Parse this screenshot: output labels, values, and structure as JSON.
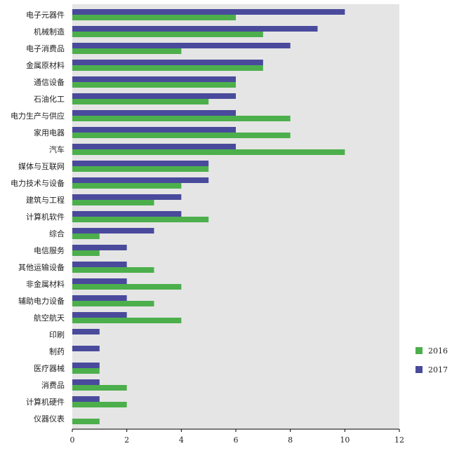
{
  "chart_data": {
    "type": "bar",
    "orientation": "horizontal",
    "title": "",
    "xlabel": "",
    "ylabel": "",
    "categories": [
      "电子元器件",
      "机械制造",
      "电子消费品",
      "金属原材料",
      "通信设备",
      "石油化工",
      "电力生产与供应",
      "家用电器",
      "汽车",
      "媒体与互联网",
      "电力技术与设备",
      "建筑与工程",
      "计算机软件",
      "综合",
      "电信服务",
      "其他运输设备",
      "非金属材料",
      "辅助电力设备",
      "航空航天",
      "印刷",
      "制药",
      "医疗器械",
      "消费品",
      "计算机硬件",
      "仪器仪表"
    ],
    "series": [
      {
        "name": "2017",
        "color": "#4a4a9c",
        "values": [
          10,
          9,
          8,
          7,
          6,
          6,
          6,
          6,
          6,
          5,
          5,
          4,
          4,
          3,
          2,
          2,
          2,
          2,
          2,
          1,
          1,
          1,
          1,
          1,
          0
        ]
      },
      {
        "name": "2016",
        "color": "#4caf4c",
        "values": [
          6,
          7,
          4,
          7,
          6,
          5,
          8,
          8,
          10,
          5,
          4,
          3,
          5,
          1,
          1,
          3,
          4,
          3,
          4,
          0,
          0,
          1,
          2,
          2,
          1
        ]
      }
    ],
    "xlim": [
      0,
      12
    ],
    "xticks": [
      "0",
      "2",
      "4",
      "6",
      "8",
      "10",
      "12"
    ],
    "grid": false,
    "plot_background": "#e5e5e5",
    "legend": {
      "placement": "right",
      "order": [
        "2016",
        "2017"
      ]
    }
  }
}
